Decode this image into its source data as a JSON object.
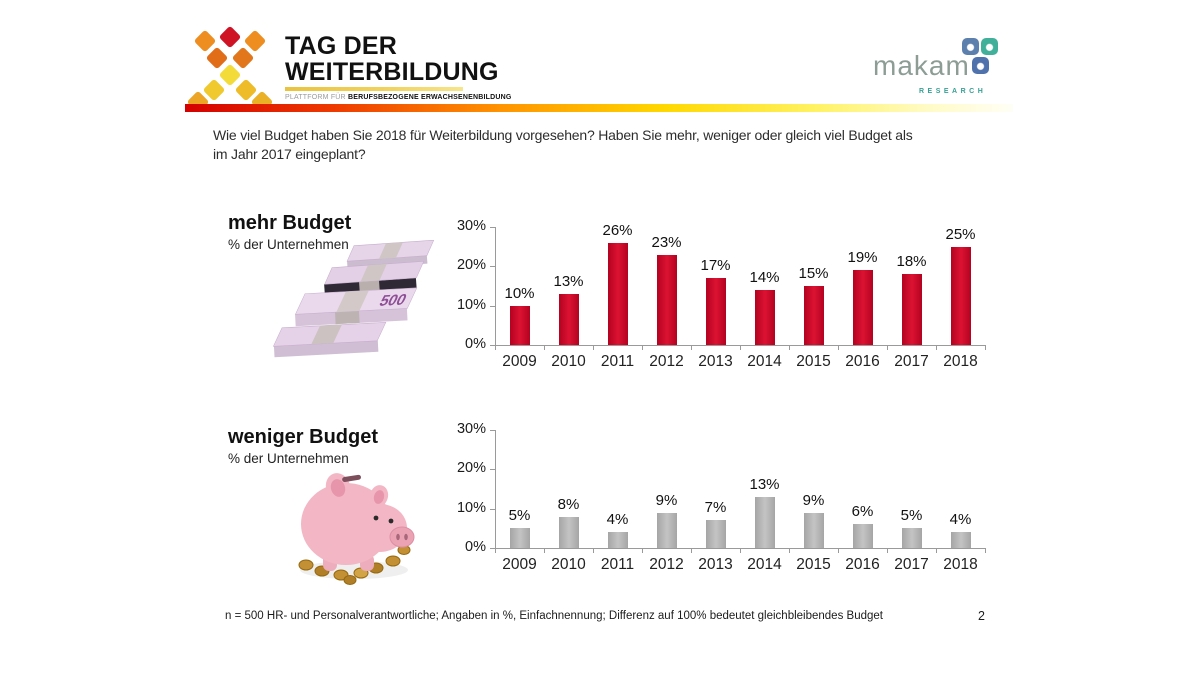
{
  "header": {
    "logo": {
      "title_line1": "TAG DER",
      "title_line2": "WEITERBILDUNG",
      "tagline_prefix": "PLATTFORM FÜR",
      "tagline_bold": "BERUFSBEZOGENE ERWACHSENENBILDUNG"
    },
    "brand": {
      "name": "makam",
      "sub": "RESEARCH"
    }
  },
  "question": {
    "lines": [
      "Wie viel Budget haben Sie 2018 für Weiterbildung vorgesehen? Haben Sie mehr, weniger oder gleich viel Budget als",
      "im Jahr 2017 eingeplant?"
    ]
  },
  "chart_data": [
    {
      "type": "bar",
      "title": "mehr Budget",
      "subtitle": "% der Unternehmen",
      "categories": [
        "2009",
        "2010",
        "2011",
        "2012",
        "2013",
        "2014",
        "2015",
        "2016",
        "2017",
        "2018"
      ],
      "values": [
        10,
        13,
        26,
        23,
        17,
        14,
        15,
        19,
        18,
        25
      ],
      "unit": "%",
      "ylim": [
        0,
        30
      ],
      "yticks": [
        0,
        10,
        20,
        30
      ],
      "data_labels": true,
      "grid": false,
      "legend": false,
      "bar_color": "#dc1232",
      "bar_color_edge": "#b30220"
    },
    {
      "type": "bar",
      "title": "weniger Budget",
      "subtitle": "% der Unternehmen",
      "categories": [
        "2009",
        "2010",
        "2011",
        "2012",
        "2013",
        "2014",
        "2015",
        "2016",
        "2017",
        "2018"
      ],
      "values": [
        5,
        8,
        4,
        9,
        7,
        13,
        9,
        6,
        5,
        4
      ],
      "unit": "%",
      "ylim": [
        0,
        30
      ],
      "yticks": [
        0,
        10,
        20,
        30
      ],
      "data_labels": true,
      "grid": false,
      "legend": false,
      "bar_color": "#c4c4c4",
      "bar_color_edge": "#a5a5a5"
    }
  ],
  "images": {
    "money": {
      "label": "euro-banknote-stacks",
      "note_value": "500"
    },
    "piggy": {
      "label": "piggy-bank-with-coins"
    }
  },
  "footer": {
    "note": "n = 500 HR- und Personalverantwortliche;  Angaben in %, Einfachnennung;  Differenz auf 100% bedeutet gleichbleibendes Budget",
    "page": "2"
  }
}
